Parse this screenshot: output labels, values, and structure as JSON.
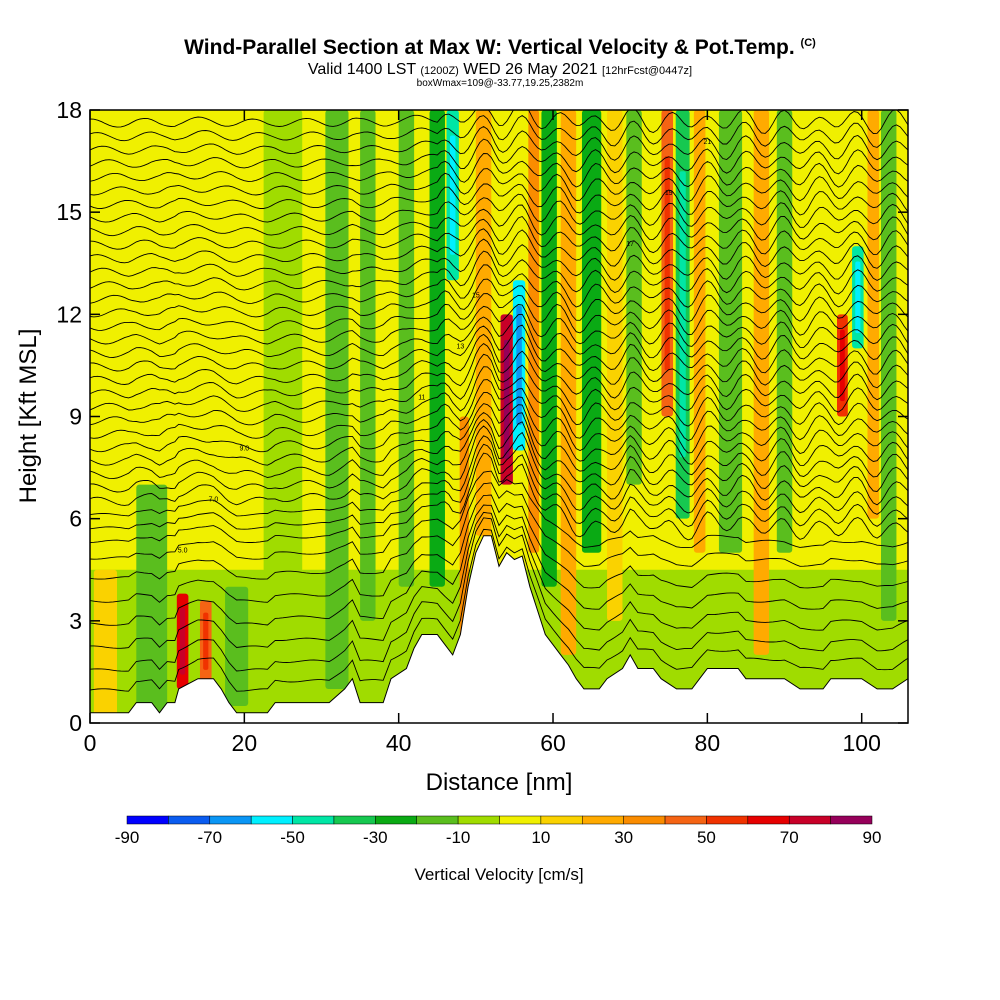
{
  "chart_data": {
    "type": "heatmap",
    "title": "Wind-Parallel Section at Max W: Vertical Velocity & Pot.Temp.",
    "title_mark": "(C)",
    "subtitle_main": "Valid 1400 LST",
    "subtitle_utc": "(1200Z)",
    "subtitle_date": "WED 26 May 2021",
    "subtitle_forecast": "[12hrFcst@0447z]",
    "subtitle2": "boxWmax=109@-33.77,19.25,2382m",
    "xlabel": "Distance [nm]",
    "ylabel": "Height [Kft MSL]",
    "xlim": [
      0,
      106
    ],
    "ylim": [
      0,
      18
    ],
    "xticks": [
      0,
      20,
      40,
      60,
      80,
      100
    ],
    "yticks": [
      0,
      3,
      6,
      9,
      12,
      15,
      18
    ],
    "colorbar": {
      "label": "Vertical Velocity [cm/s]",
      "tick_labels": [
        "-90",
        "-70",
        "-50",
        "-30",
        "-10",
        "10",
        "30",
        "50",
        "70",
        "90"
      ],
      "bins": [
        -90,
        -80,
        -70,
        -60,
        -50,
        -40,
        -30,
        -20,
        -10,
        0,
        10,
        20,
        30,
        40,
        50,
        60,
        70,
        80,
        90
      ],
      "colors": [
        "#0000ff",
        "#0a5cf0",
        "#0a96f5",
        "#00f0ff",
        "#00e6a5",
        "#16c850",
        "#0aaa14",
        "#5abe1e",
        "#a0dc00",
        "#f0f000",
        "#fad200",
        "#ffaa00",
        "#fa8c00",
        "#f56414",
        "#f03200",
        "#e60000",
        "#c80028",
        "#96005a"
      ]
    },
    "terrain_kft": [
      [
        0,
        0.3
      ],
      [
        5,
        0.3
      ],
      [
        6,
        0.6
      ],
      [
        8,
        0.6
      ],
      [
        9,
        0.3
      ],
      [
        10,
        0.6
      ],
      [
        11,
        0.6
      ],
      [
        11.5,
        1.0
      ],
      [
        14,
        1.3
      ],
      [
        16,
        1.3
      ],
      [
        17,
        1.0
      ],
      [
        18,
        0.6
      ],
      [
        19,
        0.3
      ],
      [
        23,
        0.3
      ],
      [
        24,
        0.6
      ],
      [
        31,
        0.6
      ],
      [
        33,
        1.0
      ],
      [
        34,
        1.3
      ],
      [
        35,
        0.6
      ],
      [
        38,
        0.6
      ],
      [
        39,
        1.3
      ],
      [
        41,
        1.6
      ],
      [
        42,
        2.2
      ],
      [
        43,
        2.6
      ],
      [
        45,
        2.6
      ],
      [
        46,
        2.3
      ],
      [
        47,
        2.0
      ],
      [
        48,
        2.6
      ],
      [
        49,
        4.0
      ],
      [
        50,
        5.0
      ],
      [
        51,
        5.5
      ],
      [
        52,
        5.5
      ],
      [
        53,
        4.6
      ],
      [
        54,
        5.0
      ],
      [
        55,
        4.8
      ],
      [
        56,
        4.9
      ],
      [
        57,
        4.0
      ],
      [
        58,
        3.3
      ],
      [
        59,
        2.6
      ],
      [
        60,
        2.3
      ],
      [
        61,
        2.0
      ],
      [
        62,
        1.7
      ],
      [
        63,
        1.3
      ],
      [
        64,
        1.0
      ],
      [
        66,
        1.0
      ],
      [
        67,
        1.3
      ],
      [
        69,
        1.6
      ],
      [
        70,
        2.0
      ],
      [
        71,
        1.6
      ],
      [
        73,
        1.6
      ],
      [
        74,
        1.3
      ],
      [
        76,
        1.0
      ],
      [
        78,
        1.0
      ],
      [
        79,
        1.3
      ],
      [
        80,
        1.6
      ],
      [
        84,
        1.6
      ],
      [
        85,
        1.3
      ],
      [
        90,
        1.3
      ],
      [
        92,
        1.0
      ],
      [
        95,
        1.0
      ],
      [
        96,
        1.3
      ],
      [
        100,
        1.3
      ],
      [
        102,
        1.0
      ],
      [
        104,
        1.0
      ],
      [
        106,
        1.3
      ]
    ],
    "w_columns": [
      {
        "x": 2,
        "w": 3,
        "zmin": 0,
        "zmax": 4.5,
        "value": 15
      },
      {
        "x": 8,
        "w": 4,
        "zmin": 0,
        "zmax": 7,
        "value": -15
      },
      {
        "x": 12,
        "w": 1.5,
        "zmin": 1,
        "zmax": 3.8,
        "value": 65
      },
      {
        "x": 15,
        "w": 1.5,
        "zmin": 1.2,
        "zmax": 3.6,
        "value": 40
      },
      {
        "x": 19,
        "w": 3,
        "zmin": 0.5,
        "zmax": 4,
        "value": -15
      },
      {
        "x": 25,
        "w": 5,
        "zmin": 4,
        "zmax": 18,
        "value": -10
      },
      {
        "x": 32,
        "w": 3,
        "zmin": 1,
        "zmax": 18,
        "value": -15
      },
      {
        "x": 36,
        "w": 2,
        "zmin": 3,
        "zmax": 18,
        "value": -12
      },
      {
        "x": 41,
        "w": 2,
        "zmin": 4,
        "zmax": 18,
        "value": -15
      },
      {
        "x": 45,
        "w": 2,
        "zmin": 4,
        "zmax": 18,
        "value": -25
      },
      {
        "x": 47,
        "w": 1.6,
        "zmin": 13,
        "zmax": 18,
        "value": -50
      },
      {
        "x": 48.5,
        "w": 1.2,
        "zmin": 2.5,
        "zmax": 9,
        "value": 35
      },
      {
        "x": 51,
        "w": 2,
        "zmin": 5.5,
        "zmax": 18,
        "value": 20
      },
      {
        "x": 54,
        "w": 1.6,
        "zmin": 7,
        "zmax": 12,
        "value": 75
      },
      {
        "x": 55.6,
        "w": 1.6,
        "zmin": 8,
        "zmax": 13,
        "value": -55
      },
      {
        "x": 57.5,
        "w": 1.4,
        "zmin": 5,
        "zmax": 18,
        "value": 35
      },
      {
        "x": 59.5,
        "w": 2,
        "zmin": 4,
        "zmax": 18,
        "value": -30
      },
      {
        "x": 62,
        "w": 2,
        "zmin": 2,
        "zmax": 18,
        "value": 20
      },
      {
        "x": 65,
        "w": 2.5,
        "zmin": 5,
        "zmax": 18,
        "value": -25
      },
      {
        "x": 68,
        "w": 2,
        "zmin": 3,
        "zmax": 18,
        "value": 15
      },
      {
        "x": 70.5,
        "w": 2,
        "zmin": 7,
        "zmax": 18,
        "value": -20
      },
      {
        "x": 74.8,
        "w": 1.5,
        "zmin": 9,
        "zmax": 18,
        "value": 45
      },
      {
        "x": 76.8,
        "w": 1.8,
        "zmin": 6,
        "zmax": 18,
        "value": -40
      },
      {
        "x": 79,
        "w": 1.5,
        "zmin": 5,
        "zmax": 18,
        "value": 25
      },
      {
        "x": 83,
        "w": 3,
        "zmin": 5,
        "zmax": 18,
        "value": -20
      },
      {
        "x": 87,
        "w": 2,
        "zmin": 2,
        "zmax": 18,
        "value": 20
      },
      {
        "x": 90,
        "w": 2,
        "zmin": 5,
        "zmax": 18,
        "value": -20
      },
      {
        "x": 97.5,
        "w": 1.4,
        "zmin": 9,
        "zmax": 12,
        "value": 55
      },
      {
        "x": 99.5,
        "w": 1.5,
        "zmin": 11,
        "zmax": 14,
        "value": -50
      },
      {
        "x": 101.5,
        "w": 1.5,
        "zmin": 6,
        "zmax": 18,
        "value": 20
      },
      {
        "x": 103.5,
        "w": 2,
        "zmin": 3,
        "zmax": 18,
        "value": -20
      }
    ],
    "theta_isentrope_heights_kft": [
      0.7,
      1.3,
      2.0,
      2.7,
      3.4,
      4.1,
      4.7,
      5.2,
      5.6,
      6.0,
      6.4,
      6.8,
      7.2,
      7.6,
      8.0,
      8.4,
      8.8,
      9.2,
      9.6,
      10.0,
      10.4,
      10.8,
      11.2,
      11.6,
      12.0,
      12.4,
      12.8,
      13.2,
      13.6,
      14.0,
      14.4,
      14.8,
      15.2,
      15.6,
      16.0,
      16.4,
      16.8,
      17.2,
      17.6
    ],
    "theta_label_values": [
      "5.0",
      "7.0",
      "9.0",
      "11",
      "13",
      "15",
      "17",
      "19",
      "21"
    ]
  }
}
